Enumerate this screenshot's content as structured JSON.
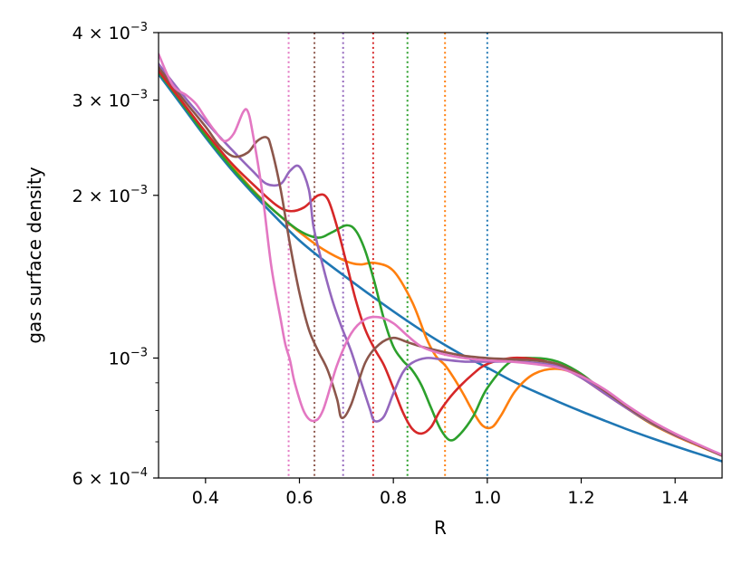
{
  "chart_data": {
    "type": "line",
    "xlabel": "R",
    "ylabel": "gas surface density",
    "xlim": [
      0.3,
      1.5
    ],
    "ylim": [
      0.0006,
      0.004
    ],
    "yscale": "log",
    "grid": false,
    "x_ticks": [
      {
        "value": 0.4,
        "label": "0.4"
      },
      {
        "value": 0.6,
        "label": "0.6"
      },
      {
        "value": 0.8,
        "label": "0.8"
      },
      {
        "value": 1.0,
        "label": "1.0"
      },
      {
        "value": 1.2,
        "label": "1.2"
      },
      {
        "value": 1.4,
        "label": "1.4"
      }
    ],
    "y_major_ticks": [
      {
        "value": 0.004,
        "mantissa": "4 × 10",
        "exp": "−3"
      },
      {
        "value": 0.003,
        "mantissa": "3 × 10",
        "exp": "−3"
      },
      {
        "value": 0.002,
        "mantissa": "2 × 10",
        "exp": "−3"
      },
      {
        "value": 0.001,
        "mantissa": "10",
        "exp": "−3"
      },
      {
        "value": 0.0006,
        "mantissa": "6 × 10",
        "exp": "−4"
      }
    ],
    "y_minor_ticks": [
      0.0007,
      0.0008,
      0.0009
    ],
    "vertical_lines": [
      {
        "x": 1.0,
        "color": "#1f77b4"
      },
      {
        "x": 0.91,
        "color": "#ff7f0e"
      },
      {
        "x": 0.83,
        "color": "#2ca02c"
      },
      {
        "x": 0.757,
        "color": "#d62728"
      },
      {
        "x": 0.693,
        "color": "#9467bd"
      },
      {
        "x": 0.632,
        "color": "#8c564b"
      },
      {
        "x": 0.577,
        "color": "#e377c2"
      }
    ],
    "series": [
      {
        "color": "#1f77b4",
        "x": [
          0.3,
          0.35,
          0.4,
          0.45,
          0.5,
          0.55,
          0.6,
          0.65,
          0.7,
          0.75,
          0.8,
          0.85,
          0.9,
          0.95,
          1.0,
          1.05,
          1.1,
          1.15,
          1.2,
          1.25,
          1.3,
          1.35,
          1.4,
          1.45,
          1.5
        ],
        "y": [
          0.00335,
          0.00293,
          0.00256,
          0.00226,
          0.00202,
          0.00182,
          0.00165,
          0.00152,
          0.00141,
          0.00131,
          0.00122,
          0.00114,
          0.00107,
          0.00101,
          0.00096,
          0.00091,
          0.000868,
          0.000831,
          0.000797,
          0.000766,
          0.000737,
          0.000711,
          0.000687,
          0.000665,
          0.000644
        ]
      },
      {
        "color": "#ff7f0e",
        "x": [
          0.3,
          0.35,
          0.4,
          0.45,
          0.5,
          0.55,
          0.6,
          0.65,
          0.7,
          0.73,
          0.76,
          0.8,
          0.84,
          0.87,
          0.89,
          0.91,
          0.93,
          0.95,
          0.97,
          0.99,
          1.01,
          1.03,
          1.06,
          1.1,
          1.15,
          1.2,
          1.25,
          1.3,
          1.35,
          1.4,
          1.45,
          1.5
        ],
        "y": [
          0.0034,
          0.00298,
          0.0026,
          0.0023,
          0.00205,
          0.00186,
          0.00171,
          0.00159,
          0.00151,
          0.00149,
          0.0015,
          0.00145,
          0.00127,
          0.00109,
          0.00101,
          0.00097,
          0.000915,
          0.000855,
          0.000795,
          0.00075,
          0.000745,
          0.000785,
          0.00087,
          0.000935,
          0.000955,
          0.000925,
          0.000865,
          0.000805,
          0.000755,
          0.000718,
          0.000688,
          0.00066
        ]
      },
      {
        "color": "#2ca02c",
        "x": [
          0.3,
          0.35,
          0.4,
          0.45,
          0.5,
          0.55,
          0.6,
          0.64,
          0.67,
          0.7,
          0.72,
          0.74,
          0.76,
          0.78,
          0.8,
          0.82,
          0.84,
          0.86,
          0.88,
          0.9,
          0.92,
          0.94,
          0.97,
          1.0,
          1.05,
          1.1,
          1.15,
          1.2,
          1.25,
          1.3,
          1.35,
          1.4,
          1.45,
          1.5
        ],
        "y": [
          0.00338,
          0.00296,
          0.00258,
          0.00228,
          0.00204,
          0.00186,
          0.00172,
          0.00167,
          0.00171,
          0.00176,
          0.00172,
          0.00158,
          0.00138,
          0.00118,
          0.00105,
          0.00099,
          0.00095,
          0.00089,
          0.00081,
          0.00074,
          0.000705,
          0.00072,
          0.00078,
          0.00088,
          0.000985,
          0.001,
          0.000985,
          0.000935,
          0.000865,
          0.000805,
          0.000757,
          0.00072,
          0.00069,
          0.00066
        ]
      },
      {
        "color": "#d62728",
        "x": [
          0.3,
          0.35,
          0.4,
          0.45,
          0.5,
          0.55,
          0.58,
          0.61,
          0.64,
          0.66,
          0.68,
          0.7,
          0.72,
          0.74,
          0.76,
          0.78,
          0.8,
          0.82,
          0.84,
          0.86,
          0.88,
          0.9,
          0.93,
          0.97,
          1.0,
          1.05,
          1.1,
          1.15,
          1.2,
          1.25,
          1.3,
          1.35,
          1.4,
          1.45,
          1.5
        ],
        "y": [
          0.0034,
          0.00298,
          0.00262,
          0.00232,
          0.0021,
          0.00192,
          0.00187,
          0.0019,
          0.002,
          0.00197,
          0.00175,
          0.0015,
          0.00128,
          0.00113,
          0.00104,
          0.00097,
          0.00088,
          0.000795,
          0.00074,
          0.000725,
          0.000745,
          0.0008,
          0.000865,
          0.000935,
          0.000975,
          0.001,
          0.000995,
          0.00097,
          0.00092,
          0.00086,
          0.000805,
          0.000758,
          0.00072,
          0.00069,
          0.00066
        ]
      },
      {
        "color": "#9467bd",
        "x": [
          0.3,
          0.35,
          0.4,
          0.45,
          0.5,
          0.53,
          0.56,
          0.58,
          0.6,
          0.62,
          0.63,
          0.65,
          0.67,
          0.69,
          0.71,
          0.73,
          0.75,
          0.76,
          0.78,
          0.8,
          0.82,
          0.84,
          0.87,
          0.9,
          0.95,
          1.0,
          1.05,
          1.1,
          1.15,
          1.2,
          1.25,
          1.3,
          1.35,
          1.4,
          1.45,
          1.5
        ],
        "y": [
          0.0035,
          0.00308,
          0.00274,
          0.00246,
          0.00222,
          0.0021,
          0.0021,
          0.00222,
          0.00226,
          0.00205,
          0.00175,
          0.00148,
          0.00128,
          0.00114,
          0.00103,
          0.00091,
          0.000805,
          0.000765,
          0.00078,
          0.00086,
          0.00094,
          0.00098,
          0.001,
          0.000995,
          0.000985,
          0.000985,
          0.000985,
          0.00098,
          0.000965,
          0.00092,
          0.00086,
          0.000805,
          0.000758,
          0.00072,
          0.00069,
          0.00066
        ]
      },
      {
        "color": "#8c564b",
        "x": [
          0.3,
          0.35,
          0.4,
          0.43,
          0.46,
          0.49,
          0.51,
          0.53,
          0.54,
          0.56,
          0.58,
          0.6,
          0.62,
          0.64,
          0.66,
          0.68,
          0.69,
          0.71,
          0.74,
          0.77,
          0.8,
          0.83,
          0.86,
          0.9,
          0.95,
          1.0,
          1.05,
          1.1,
          1.15,
          1.2,
          1.25,
          1.3,
          1.35,
          1.4,
          1.45,
          1.5
        ],
        "y": [
          0.00345,
          0.00303,
          0.00268,
          0.00247,
          0.00236,
          0.0024,
          0.00252,
          0.00256,
          0.00245,
          0.00205,
          0.00162,
          0.00132,
          0.00113,
          0.00103,
          0.00095,
          0.00084,
          0.000775,
          0.00082,
          0.00098,
          0.00106,
          0.00109,
          0.00107,
          0.00105,
          0.00103,
          0.00101,
          0.001,
          0.000995,
          0.00099,
          0.000975,
          0.00093,
          0.00087,
          0.00081,
          0.00076,
          0.000722,
          0.00069,
          0.00066
        ]
      },
      {
        "color": "#e377c2",
        "x": [
          0.3,
          0.33,
          0.36,
          0.38,
          0.4,
          0.42,
          0.44,
          0.46,
          0.48,
          0.49,
          0.5,
          0.52,
          0.54,
          0.56,
          0.57,
          0.58,
          0.59,
          0.61,
          0.63,
          0.65,
          0.68,
          0.71,
          0.74,
          0.77,
          0.8,
          0.83,
          0.86,
          0.9,
          0.95,
          1.0,
          1.05,
          1.1,
          1.15,
          1.2,
          1.25,
          1.3,
          1.35,
          1.4,
          1.45,
          1.5
        ],
        "y": [
          0.00365,
          0.0032,
          0.00306,
          0.00295,
          0.00278,
          0.00263,
          0.00252,
          0.0026,
          0.00285,
          0.00286,
          0.00262,
          0.00205,
          0.00148,
          0.00118,
          0.00106,
          0.00099,
          0.0009,
          0.000795,
          0.000765,
          0.0008,
          0.00097,
          0.00111,
          0.00118,
          0.00119,
          0.00116,
          0.0011,
          0.00105,
          0.00102,
          0.001,
          0.00099,
          0.000985,
          0.000975,
          0.00096,
          0.000925,
          0.000875,
          0.000815,
          0.000765,
          0.000725,
          0.000692,
          0.000662
        ]
      }
    ]
  }
}
